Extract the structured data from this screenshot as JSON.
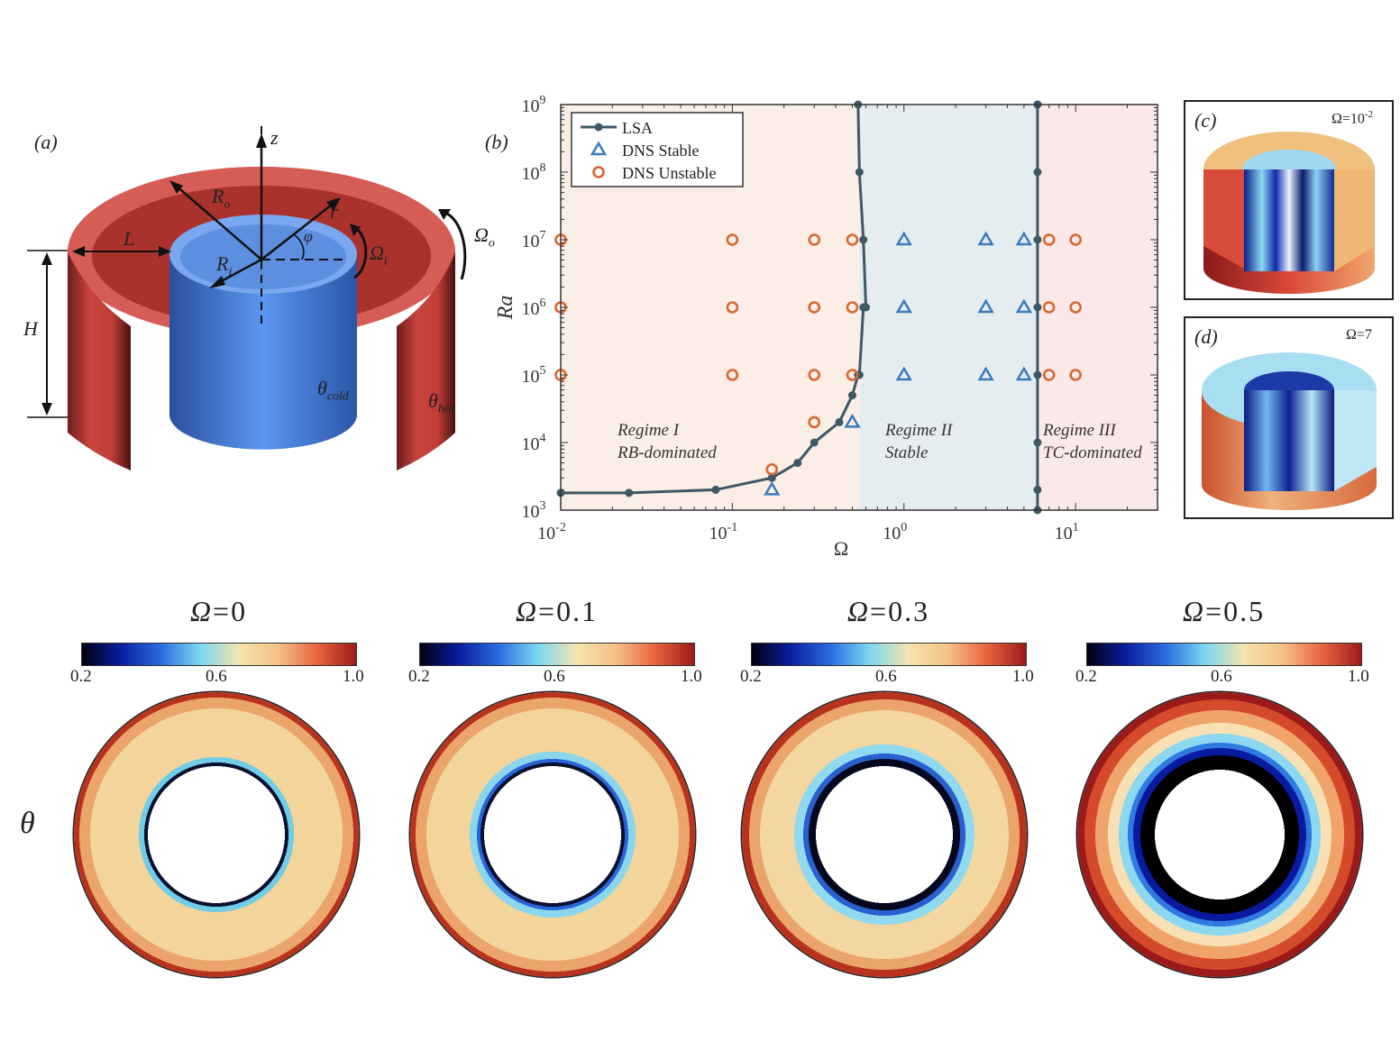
{
  "panel_a": {
    "label": "(a)",
    "symbols": {
      "z": "z",
      "r": "r",
      "phi": "φ",
      "Ro": "R",
      "Ro_sub": "o",
      "Ri": "R",
      "Ri_sub": "i",
      "L": "L",
      "H": "H",
      "omega_i": "Ω",
      "omega_i_sub": "i",
      "omega_o": "Ω",
      "omega_o_sub": "o",
      "theta_cold": "θ",
      "theta_cold_sub": "cold",
      "theta_hot": "θ",
      "theta_hot_sub": "hot"
    },
    "colors": {
      "outer": "#d9534a",
      "inner": "#4a86e8"
    }
  },
  "panel_b": {
    "label": "(b)",
    "ylabel": "Ra",
    "xlabel": "Ω",
    "legend": [
      "LSA",
      "DNS Stable",
      "DNS Unstable"
    ],
    "regimes": [
      {
        "name": "Regime I",
        "desc": "RB-dominated"
      },
      {
        "name": "Regime II",
        "desc": "Stable"
      },
      {
        "name": "Regime III",
        "desc": "TC-dominated"
      }
    ],
    "xticks": [
      {
        "base": "10",
        "exp": "-2"
      },
      {
        "base": "10",
        "exp": "-1"
      },
      {
        "base": "10",
        "exp": "0"
      },
      {
        "base": "10",
        "exp": "1"
      }
    ],
    "yticks": [
      {
        "base": "10",
        "exp": "3"
      },
      {
        "base": "10",
        "exp": "4"
      },
      {
        "base": "10",
        "exp": "5"
      },
      {
        "base": "10",
        "exp": "6"
      },
      {
        "base": "10",
        "exp": "7"
      },
      {
        "base": "10",
        "exp": "8"
      },
      {
        "base": "10",
        "exp": "9"
      }
    ],
    "colors": {
      "lsa": "#3d5866",
      "stable": "#3a7bbf",
      "unstable": "#d9652e",
      "regime1": "#faeee6",
      "regime2": "#e6edf1",
      "regime3": "#fbe9e9"
    }
  },
  "chart_data": {
    "type": "scatter",
    "xscale": "log",
    "yscale": "log",
    "xlim": [
      0.01,
      30
    ],
    "ylim": [
      1000,
      1000000000
    ],
    "xlabel": "Ω",
    "ylabel": "Ra",
    "legend_position": "top-left",
    "series": [
      {
        "name": "LSA",
        "kind": "line-marker",
        "x": [
          0.01,
          0.025,
          0.08,
          0.17,
          0.24,
          0.3,
          0.42,
          0.5,
          0.54,
          0.55,
          0.58,
          0.6,
          0.58,
          0.55,
          0.54
        ],
        "y": [
          1800,
          1800,
          2000,
          3000,
          5000,
          10000,
          20000,
          50000,
          100000,
          100000,
          1000000,
          1000000,
          10000000,
          100000000,
          1000000000
        ]
      },
      {
        "name": "LSA",
        "kind": "line-marker",
        "x": [
          6,
          6,
          6,
          6,
          6,
          6,
          6,
          6,
          6
        ],
        "y": [
          1000,
          2000,
          10000,
          100000,
          1000000,
          10000000,
          100000000,
          1000000000,
          1000000000
        ]
      },
      {
        "name": "DNS Stable",
        "x": [
          0.17,
          0.5,
          1,
          1,
          1,
          3,
          3,
          3,
          5,
          5,
          5
        ],
        "y": [
          2000,
          20000,
          100000,
          1000000,
          10000000,
          100000,
          1000000,
          10000000,
          100000,
          1000000,
          10000000
        ]
      },
      {
        "name": "DNS Unstable",
        "x": [
          0.01,
          0.01,
          0.01,
          0.1,
          0.1,
          0.1,
          0.17,
          0.3,
          0.3,
          0.3,
          0.3,
          0.5,
          0.5,
          0.5,
          7,
          7,
          7,
          10,
          10,
          10
        ],
        "y": [
          100000,
          1000000,
          10000000,
          100000,
          1000000,
          10000000,
          4000,
          20000,
          100000,
          1000000,
          10000000,
          100000,
          1000000,
          10000000,
          100000,
          1000000,
          10000000,
          100000,
          1000000,
          10000000
        ]
      }
    ],
    "regime_bounds": [
      0.01,
      0.55,
      6,
      30
    ]
  },
  "panel_c": {
    "label": "(c)",
    "omega": "Ω=10",
    "omega_exp": "-2"
  },
  "panel_d": {
    "label": "(d)",
    "omega": "Ω=7"
  },
  "bottom": {
    "row_label": "θ",
    "colorbar": {
      "ticks": [
        "0.2",
        "0.6",
        "1.0"
      ],
      "stops": [
        "#000010",
        "#0a1ea0",
        "#2a6ae0",
        "#7ad8f0",
        "#f3e4b0",
        "#f5c286",
        "#e8643e",
        "#9e1a1a"
      ]
    },
    "titles": [
      {
        "sym": "Ω",
        "val": "=0"
      },
      {
        "sym": "Ω",
        "val": "=0.1"
      },
      {
        "sym": "Ω",
        "val": "=0.3"
      },
      {
        "sym": "Ω",
        "val": "=0.5"
      }
    ]
  }
}
